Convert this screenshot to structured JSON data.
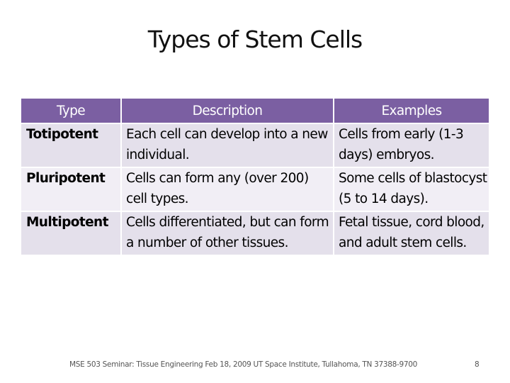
{
  "slide": {
    "title": "Types of Stem Cells"
  },
  "table": {
    "headers": [
      "Type",
      "Description",
      "Examples"
    ],
    "rows": [
      {
        "type": "Totipotent",
        "description": "Each cell can develop into a new individual.",
        "examples": "Cells from early (1-3 days) embryos."
      },
      {
        "type": "Pluripotent",
        "description": "Cells can form any (over 200) cell types.",
        "examples": "Some cells of blastocyst (5 to 14 days)."
      },
      {
        "type": "Multipotent",
        "description": "Cells differentiated, but can form a number of other tissues.",
        "examples": "Fetal tissue, cord blood, and adult stem cells."
      }
    ]
  },
  "footer": {
    "text": "MSE 503 Seminar: Tissue Engineering   Feb 18, 2009   UT Space Institute, Tullahoma, TN 37388-9700",
    "page_number": "8"
  },
  "colors": {
    "header_bg": "#7b5fa2",
    "row_odd_bg": "#e4e0eb",
    "row_even_bg": "#f1eef5"
  }
}
